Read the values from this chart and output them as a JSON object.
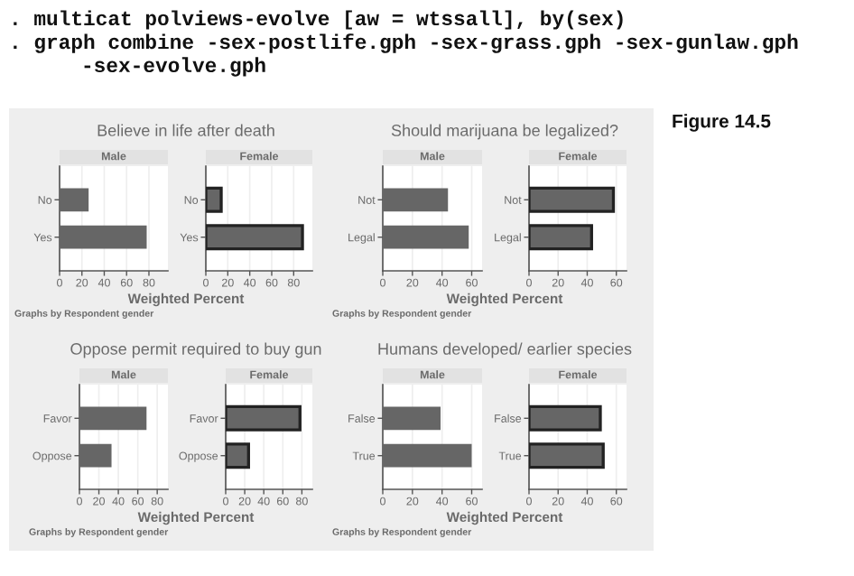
{
  "chart_data": [
    {
      "type": "bar",
      "orientation": "horizontal",
      "title": "Believe in life after death",
      "subtitle": "Male",
      "xlabel": "Weighted Percent",
      "categories": [
        "No",
        "Yes"
      ],
      "values": [
        26,
        78
      ],
      "color": "#666666",
      "xlim": [
        0,
        97
      ],
      "xticks": [
        0,
        20,
        40,
        60,
        80
      ],
      "grid": "x",
      "legend": false,
      "annotations": [
        "Graphs by Respondent gender",
        ". multicat polviews-evolve [aw = wtssall], by(sex)",
        ". graph combine -sex-postlife.gph -sex-grass.gph -sex-gunlaw.gph",
        "-sex-evolve.gph",
        "Figure 14.5"
      ]
    },
    {
      "type": "bar",
      "orientation": "horizontal",
      "subtitle": "Female",
      "categories": [
        "No",
        "Yes"
      ],
      "values": [
        14,
        88
      ],
      "color": "#666666",
      "xlim": [
        0,
        97
      ],
      "xticks": [
        0,
        20,
        40,
        60,
        80
      ],
      "grid": "x",
      "legend": false
    },
    {
      "type": "bar",
      "orientation": "horizontal",
      "title": "Should marijuana be legalized?",
      "subtitle": "Male",
      "xlabel": "Weighted Percent",
      "categories": [
        "Not",
        "Legal"
      ],
      "values": [
        44,
        58
      ],
      "color": "#666666",
      "xlim": [
        0,
        67
      ],
      "xticks": [
        0,
        20,
        40,
        60
      ],
      "grid": "x",
      "legend": false,
      "annotations": [
        "Graphs by Respondent gender"
      ]
    },
    {
      "type": "bar",
      "orientation": "horizontal",
      "subtitle": "Female",
      "categories": [
        "Not",
        "Legal"
      ],
      "values": [
        58,
        43
      ],
      "color": "#666666",
      "xlim": [
        0,
        67
      ],
      "xticks": [
        0,
        20,
        40,
        60
      ],
      "grid": "x",
      "legend": false
    },
    {
      "type": "bar",
      "orientation": "horizontal",
      "title": "Oppose permit required to buy gun",
      "subtitle": "Male",
      "xlabel": "Weighted Percent",
      "categories": [
        "Favor",
        "Oppose"
      ],
      "values": [
        69,
        33
      ],
      "color": "#666666",
      "xlim": [
        0,
        91
      ],
      "xticks": [
        0,
        20,
        40,
        60,
        80
      ],
      "grid": "x",
      "legend": false,
      "annotations": [
        "Graphs by Respondent gender"
      ]
    },
    {
      "type": "bar",
      "orientation": "horizontal",
      "subtitle": "Female",
      "categories": [
        "Favor",
        "Oppose"
      ],
      "values": [
        78,
        24
      ],
      "color": "#666666",
      "xlim": [
        0,
        91
      ],
      "xticks": [
        0,
        20,
        40,
        60,
        80
      ],
      "grid": "x",
      "legend": false
    },
    {
      "type": "bar",
      "orientation": "horizontal",
      "title": "Humans developed/ earlier species",
      "subtitle": "Male",
      "xlabel": "Weighted Percent",
      "categories": [
        "False",
        "True"
      ],
      "values": [
        39,
        60
      ],
      "color": "#666666",
      "xlim": [
        0,
        67
      ],
      "xticks": [
        0,
        20,
        40,
        60
      ],
      "grid": "x",
      "legend": false,
      "annotations": [
        "Graphs by Respondent gender"
      ]
    },
    {
      "type": "bar",
      "orientation": "horizontal",
      "subtitle": "Female",
      "categories": [
        "False",
        "True"
      ],
      "values": [
        49,
        51
      ],
      "color": "#666666",
      "xlim": [
        0,
        67
      ],
      "xticks": [
        0,
        20,
        40,
        60
      ],
      "grid": "x",
      "legend": false
    }
  ]
}
